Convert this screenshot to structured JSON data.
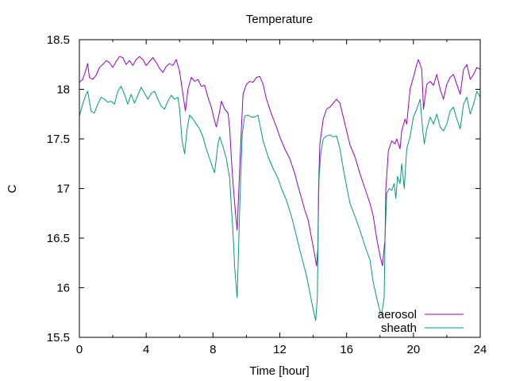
{
  "chart_data": {
    "type": "line",
    "title": "Temperature",
    "xlabel": "Time [hour]",
    "ylabel": "C",
    "xlim": [
      0,
      24
    ],
    "ylim": [
      15.5,
      18.5
    ],
    "x_ticks": [
      0,
      4,
      8,
      12,
      16,
      20,
      24
    ],
    "x_tick_labels": [
      "0",
      "4",
      "8",
      "12",
      "16",
      "20",
      "24"
    ],
    "y_ticks": [
      15.5,
      16,
      16.5,
      17,
      17.5,
      18,
      18.5
    ],
    "y_tick_labels": [
      "15.5",
      "16",
      "16.5",
      "17",
      "17.5",
      "18",
      "18.5"
    ],
    "grid": false,
    "legend_position": "bottom-right",
    "series": [
      {
        "name": "aerosol",
        "color": "#9400d3",
        "points": [
          [
            0.0,
            18.07
          ],
          [
            0.2,
            18.1
          ],
          [
            0.4,
            18.2
          ],
          [
            0.5,
            18.26
          ],
          [
            0.6,
            18.12
          ],
          [
            0.8,
            18.1
          ],
          [
            1.0,
            18.14
          ],
          [
            1.2,
            18.22
          ],
          [
            1.4,
            18.25
          ],
          [
            1.6,
            18.29
          ],
          [
            1.8,
            18.27
          ],
          [
            2.0,
            18.22
          ],
          [
            2.2,
            18.28
          ],
          [
            2.4,
            18.33
          ],
          [
            2.6,
            18.32
          ],
          [
            2.8,
            18.25
          ],
          [
            3.0,
            18.29
          ],
          [
            3.2,
            18.24
          ],
          [
            3.4,
            18.3
          ],
          [
            3.6,
            18.33
          ],
          [
            3.8,
            18.3
          ],
          [
            4.0,
            18.24
          ],
          [
            4.2,
            18.28
          ],
          [
            4.4,
            18.32
          ],
          [
            4.6,
            18.27
          ],
          [
            4.8,
            18.21
          ],
          [
            5.0,
            18.17
          ],
          [
            5.2,
            18.23
          ],
          [
            5.4,
            18.26
          ],
          [
            5.6,
            18.24
          ],
          [
            5.8,
            18.3
          ],
          [
            6.0,
            18.18
          ],
          [
            6.2,
            17.95
          ],
          [
            6.35,
            17.78
          ],
          [
            6.5,
            18.0
          ],
          [
            6.7,
            18.12
          ],
          [
            6.9,
            18.08
          ],
          [
            7.1,
            18.1
          ],
          [
            7.3,
            18.03
          ],
          [
            7.5,
            18.04
          ],
          [
            7.7,
            17.92
          ],
          [
            7.9,
            17.82
          ],
          [
            8.1,
            17.68
          ],
          [
            8.2,
            17.62
          ],
          [
            8.4,
            17.78
          ],
          [
            8.5,
            17.88
          ],
          [
            8.7,
            17.8
          ],
          [
            8.9,
            17.76
          ],
          [
            9.0,
            17.6
          ],
          [
            9.1,
            17.3
          ],
          [
            9.2,
            17.05
          ],
          [
            9.35,
            16.75
          ],
          [
            9.45,
            16.58
          ],
          [
            9.55,
            17.0
          ],
          [
            9.7,
            17.6
          ],
          [
            9.8,
            17.95
          ],
          [
            10.0,
            18.05
          ],
          [
            10.2,
            18.08
          ],
          [
            10.4,
            18.07
          ],
          [
            10.6,
            18.12
          ],
          [
            10.8,
            18.13
          ],
          [
            11.0,
            18.05
          ],
          [
            11.2,
            17.9
          ],
          [
            11.5,
            17.75
          ],
          [
            11.8,
            17.62
          ],
          [
            12.0,
            17.52
          ],
          [
            12.3,
            17.4
          ],
          [
            12.6,
            17.3
          ],
          [
            12.9,
            17.15
          ],
          [
            13.1,
            17.02
          ],
          [
            13.3,
            16.9
          ],
          [
            13.5,
            16.78
          ],
          [
            13.7,
            16.68
          ],
          [
            13.9,
            16.5
          ],
          [
            14.1,
            16.32
          ],
          [
            14.2,
            16.22
          ],
          [
            14.28,
            16.4
          ],
          [
            14.32,
            17.0
          ],
          [
            14.4,
            17.45
          ],
          [
            14.6,
            17.7
          ],
          [
            14.8,
            17.8
          ],
          [
            15.0,
            17.82
          ],
          [
            15.2,
            17.86
          ],
          [
            15.4,
            17.9
          ],
          [
            15.6,
            17.86
          ],
          [
            15.8,
            17.72
          ],
          [
            16.0,
            17.58
          ],
          [
            16.2,
            17.44
          ],
          [
            16.5,
            17.32
          ],
          [
            16.8,
            17.15
          ],
          [
            17.1,
            17.0
          ],
          [
            17.4,
            16.85
          ],
          [
            17.6,
            16.72
          ],
          [
            17.8,
            16.5
          ],
          [
            18.0,
            16.32
          ],
          [
            18.15,
            16.22
          ],
          [
            18.3,
            16.5
          ],
          [
            18.35,
            17.0
          ],
          [
            18.5,
            17.38
          ],
          [
            18.7,
            17.48
          ],
          [
            18.9,
            17.45
          ],
          [
            19.0,
            17.5
          ],
          [
            19.2,
            17.4
          ],
          [
            19.3,
            17.58
          ],
          [
            19.5,
            17.7
          ],
          [
            19.6,
            17.65
          ],
          [
            19.8,
            18.0
          ],
          [
            20.0,
            18.12
          ],
          [
            20.2,
            18.25
          ],
          [
            20.3,
            18.3
          ],
          [
            20.5,
            18.2
          ],
          [
            20.6,
            17.8
          ],
          [
            20.8,
            18.05
          ],
          [
            21.0,
            18.08
          ],
          [
            21.2,
            18.04
          ],
          [
            21.4,
            18.15
          ],
          [
            21.6,
            18.0
          ],
          [
            21.8,
            17.9
          ],
          [
            22.0,
            18.05
          ],
          [
            22.2,
            18.12
          ],
          [
            22.4,
            18.15
          ],
          [
            22.6,
            18.05
          ],
          [
            22.8,
            17.95
          ],
          [
            23.0,
            18.2
          ],
          [
            23.2,
            18.25
          ],
          [
            23.4,
            18.1
          ],
          [
            23.6,
            18.15
          ],
          [
            23.8,
            18.22
          ],
          [
            24.0,
            18.2
          ]
        ]
      },
      {
        "name": "sheath",
        "color": "#009e73",
        "points": [
          [
            0.0,
            17.73
          ],
          [
            0.2,
            17.85
          ],
          [
            0.4,
            17.95
          ],
          [
            0.5,
            17.98
          ],
          [
            0.7,
            17.78
          ],
          [
            0.9,
            17.76
          ],
          [
            1.1,
            17.85
          ],
          [
            1.3,
            17.92
          ],
          [
            1.5,
            17.9
          ],
          [
            1.7,
            17.87
          ],
          [
            1.9,
            17.88
          ],
          [
            2.1,
            17.85
          ],
          [
            2.3,
            17.98
          ],
          [
            2.5,
            18.03
          ],
          [
            2.7,
            17.95
          ],
          [
            2.9,
            17.85
          ],
          [
            3.1,
            17.95
          ],
          [
            3.3,
            17.86
          ],
          [
            3.5,
            17.94
          ],
          [
            3.7,
            18.02
          ],
          [
            3.9,
            17.96
          ],
          [
            4.1,
            17.9
          ],
          [
            4.3,
            17.96
          ],
          [
            4.5,
            17.98
          ],
          [
            4.7,
            17.9
          ],
          [
            4.9,
            17.83
          ],
          [
            5.1,
            17.8
          ],
          [
            5.3,
            17.88
          ],
          [
            5.5,
            17.94
          ],
          [
            5.7,
            17.9
          ],
          [
            5.9,
            17.92
          ],
          [
            6.0,
            17.8
          ],
          [
            6.15,
            17.48
          ],
          [
            6.3,
            17.35
          ],
          [
            6.45,
            17.6
          ],
          [
            6.6,
            17.74
          ],
          [
            6.8,
            17.7
          ],
          [
            7.0,
            17.65
          ],
          [
            7.2,
            17.6
          ],
          [
            7.4,
            17.52
          ],
          [
            7.6,
            17.4
          ],
          [
            7.8,
            17.3
          ],
          [
            8.0,
            17.2
          ],
          [
            8.1,
            17.16
          ],
          [
            8.3,
            17.45
          ],
          [
            8.4,
            17.52
          ],
          [
            8.6,
            17.42
          ],
          [
            8.8,
            17.3
          ],
          [
            9.0,
            17.1
          ],
          [
            9.1,
            16.8
          ],
          [
            9.2,
            16.55
          ],
          [
            9.3,
            16.2
          ],
          [
            9.45,
            15.9
          ],
          [
            9.6,
            16.8
          ],
          [
            9.75,
            17.55
          ],
          [
            9.9,
            17.73
          ],
          [
            10.1,
            17.74
          ],
          [
            10.3,
            17.72
          ],
          [
            10.5,
            17.72
          ],
          [
            10.7,
            17.74
          ],
          [
            10.8,
            17.65
          ],
          [
            11.0,
            17.48
          ],
          [
            11.3,
            17.32
          ],
          [
            11.6,
            17.2
          ],
          [
            11.9,
            17.1
          ],
          [
            12.1,
            17.0
          ],
          [
            12.4,
            16.88
          ],
          [
            12.7,
            16.72
          ],
          [
            13.0,
            16.52
          ],
          [
            13.2,
            16.38
          ],
          [
            13.4,
            16.25
          ],
          [
            13.6,
            16.12
          ],
          [
            13.8,
            15.95
          ],
          [
            14.0,
            15.78
          ],
          [
            14.15,
            15.67
          ],
          [
            14.25,
            15.9
          ],
          [
            14.3,
            16.6
          ],
          [
            14.35,
            17.1
          ],
          [
            14.45,
            17.35
          ],
          [
            14.6,
            17.5
          ],
          [
            14.8,
            17.53
          ],
          [
            15.0,
            17.54
          ],
          [
            15.2,
            17.52
          ],
          [
            15.4,
            17.53
          ],
          [
            15.6,
            17.4
          ],
          [
            15.8,
            17.2
          ],
          [
            16.0,
            17.02
          ],
          [
            16.2,
            16.85
          ],
          [
            16.5,
            16.72
          ],
          [
            16.8,
            16.58
          ],
          [
            17.1,
            16.42
          ],
          [
            17.4,
            16.28
          ],
          [
            17.6,
            16.05
          ],
          [
            17.8,
            15.9
          ],
          [
            18.0,
            15.76
          ],
          [
            18.1,
            15.74
          ],
          [
            18.25,
            15.9
          ],
          [
            18.3,
            16.5
          ],
          [
            18.4,
            16.95
          ],
          [
            18.55,
            17.0
          ],
          [
            18.7,
            16.98
          ],
          [
            18.85,
            17.05
          ],
          [
            18.95,
            16.9
          ],
          [
            19.05,
            17.12
          ],
          [
            19.2,
            17.05
          ],
          [
            19.3,
            17.25
          ],
          [
            19.45,
            17.0
          ],
          [
            19.6,
            17.4
          ],
          [
            19.8,
            17.52
          ],
          [
            20.0,
            17.72
          ],
          [
            20.2,
            17.8
          ],
          [
            20.4,
            17.9
          ],
          [
            20.55,
            17.6
          ],
          [
            20.65,
            17.45
          ],
          [
            20.8,
            17.6
          ],
          [
            21.0,
            17.72
          ],
          [
            21.2,
            17.65
          ],
          [
            21.4,
            17.75
          ],
          [
            21.6,
            17.62
          ],
          [
            21.8,
            17.58
          ],
          [
            22.0,
            17.65
          ],
          [
            22.2,
            17.78
          ],
          [
            22.4,
            17.82
          ],
          [
            22.6,
            17.7
          ],
          [
            22.8,
            17.6
          ],
          [
            23.0,
            17.85
          ],
          [
            23.2,
            17.92
          ],
          [
            23.4,
            17.75
          ],
          [
            23.6,
            17.85
          ],
          [
            23.8,
            17.98
          ],
          [
            24.0,
            17.92
          ]
        ]
      }
    ]
  }
}
